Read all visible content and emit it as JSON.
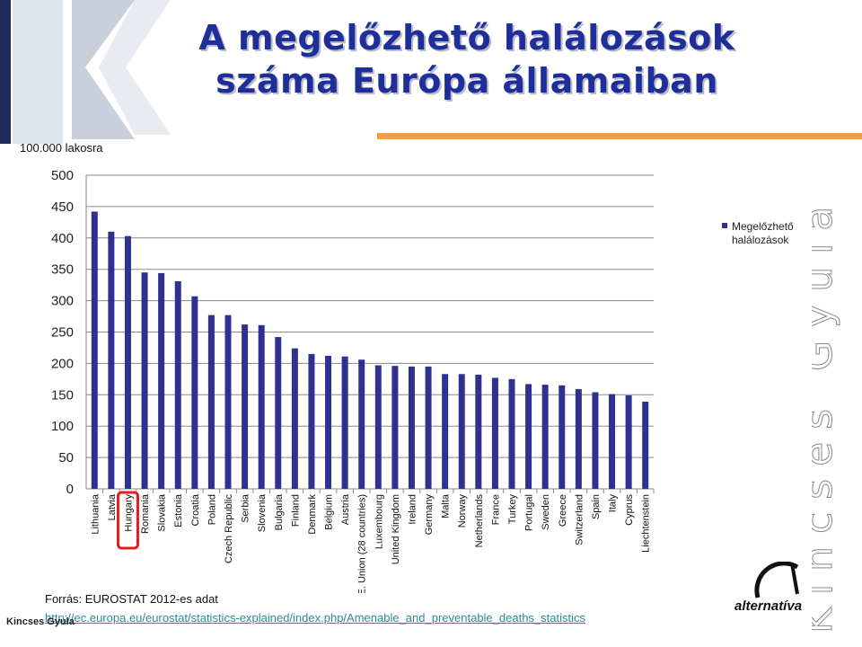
{
  "slide": {
    "title_line1": "A megelőzhető halálozások",
    "title_line2": "száma Európa államaiban",
    "unit_label": "100.000 lakosra",
    "source_text": "Forrás: EUROSTAT  2012-es adat",
    "source_url": "http://ec.europa.eu/eurostat/statistics-explained/index.php/Amenable_and_preventable_deaths_statistics",
    "author": "Kincses Gyula",
    "logo_text": "alternatíva",
    "vertical_name": "Kincses Gyula"
  },
  "colors": {
    "bar": "#2e3192",
    "highlight": "#e02020",
    "orange_rule": "#f0a040",
    "title": "#1f2f9a"
  },
  "chart_data": {
    "type": "bar",
    "title": "",
    "xlabel": "",
    "ylabel": "100.000 lakosra",
    "ylim": [
      0,
      500
    ],
    "yticks": [
      0,
      50,
      100,
      150,
      200,
      250,
      300,
      350,
      400,
      450,
      500
    ],
    "grid": true,
    "legend_position": "right",
    "highlighted_category": "Hungary",
    "categories": [
      "Lithuania",
      "Latvia",
      "Hungary",
      "Romania",
      "Slovakia",
      "Estonia",
      "Croatia",
      "Poland",
      "Czech Republic",
      "Serbia",
      "Slovenia",
      "Bulgaria",
      "Finland",
      "Denmark",
      "Belgium",
      "Austria",
      "E. Union (28 countries)",
      "Luxembourg",
      "United Kingdom",
      "Ireland",
      "Germany",
      "Malta",
      "Norway",
      "Netherlands",
      "France",
      "Turkey",
      "Portugal",
      "Sweden",
      "Greece",
      "Switzerland",
      "Spain",
      "Italy",
      "Cyprus",
      "Liechtenstein"
    ],
    "series": [
      {
        "name": "Megelőzhető halálozások",
        "values": [
          442,
          410,
          403,
          345,
          344,
          331,
          307,
          277,
          277,
          262,
          261,
          242,
          224,
          215,
          212,
          211,
          206,
          197,
          196,
          195,
          195,
          183,
          183,
          182,
          177,
          175,
          167,
          166,
          165,
          159,
          154,
          151,
          149,
          139
        ]
      }
    ]
  }
}
